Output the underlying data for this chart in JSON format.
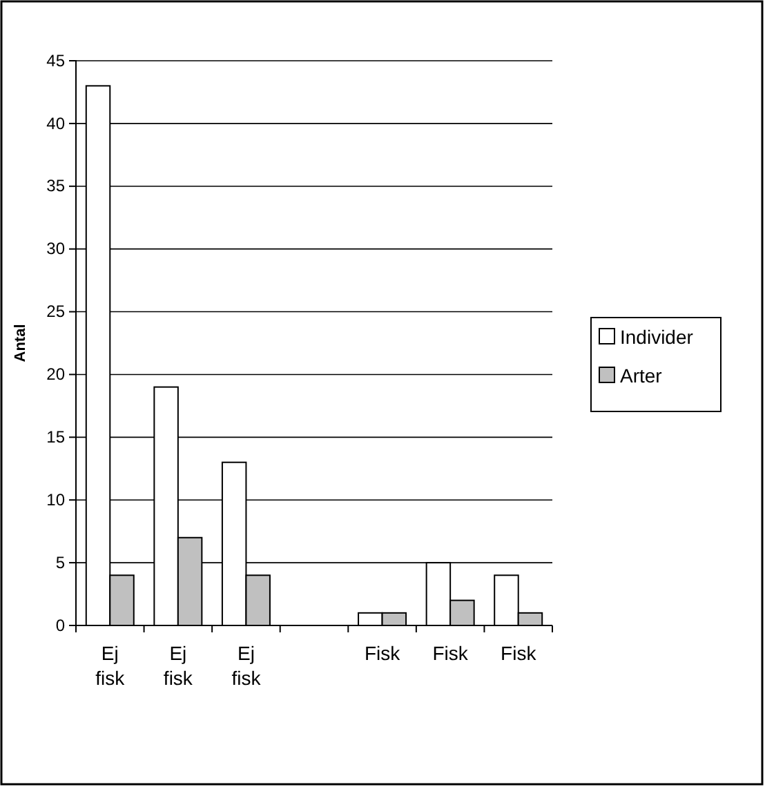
{
  "chart_data": {
    "type": "bar",
    "ylabel": "Antal",
    "categories": [
      "Ej fisk",
      "Ej fisk",
      "Ej fisk",
      null,
      "Fisk",
      "Fisk",
      "Fisk"
    ],
    "series": [
      {
        "name": "Individer",
        "color": "#ffffff",
        "values": [
          43,
          19,
          13,
          null,
          1,
          5,
          4
        ]
      },
      {
        "name": "Arter",
        "color": "#c0c0c0",
        "values": [
          4,
          7,
          4,
          null,
          1,
          2,
          1
        ]
      }
    ],
    "ylim": [
      0,
      45
    ],
    "yticks": [
      0,
      5,
      10,
      15,
      20,
      25,
      30,
      35,
      40,
      45
    ],
    "grid": "y",
    "legend": "right"
  }
}
